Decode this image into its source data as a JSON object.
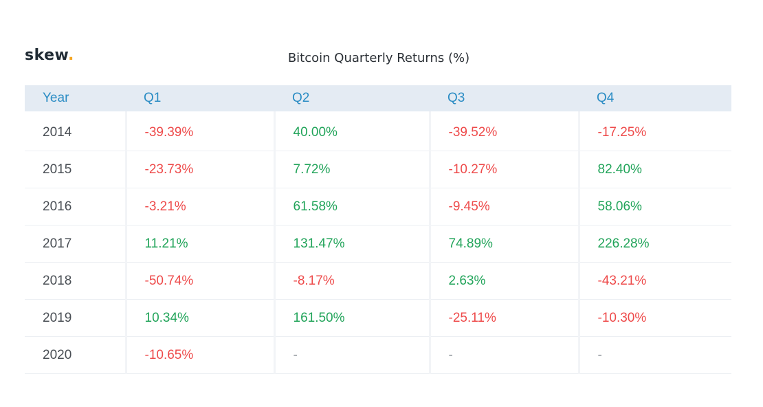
{
  "brand": {
    "name": "skew",
    "dot": ".",
    "accent_color": "#f5a623"
  },
  "title": "Bitcoin Quarterly Returns (%)",
  "colors": {
    "header_bg": "#e4ebf3",
    "header_text": "#2a8cc4",
    "positive": "#22a45a",
    "negative": "#ee4b4b"
  },
  "chart_data": {
    "type": "table",
    "title": "Bitcoin Quarterly Returns (%)",
    "columns": [
      "Year",
      "Q1",
      "Q2",
      "Q3",
      "Q4"
    ],
    "rows": [
      {
        "year": "2014",
        "cells": [
          "-39.39%",
          "40.00%",
          "-39.52%",
          "-17.25%"
        ]
      },
      {
        "year": "2015",
        "cells": [
          "-23.73%",
          "7.72%",
          "-10.27%",
          "82.40%"
        ]
      },
      {
        "year": "2016",
        "cells": [
          "-3.21%",
          "61.58%",
          "-9.45%",
          "58.06%"
        ]
      },
      {
        "year": "2017",
        "cells": [
          "11.21%",
          "131.47%",
          "74.89%",
          "226.28%"
        ]
      },
      {
        "year": "2018",
        "cells": [
          "-50.74%",
          "-8.17%",
          "2.63%",
          "-43.21%"
        ]
      },
      {
        "year": "2019",
        "cells": [
          "10.34%",
          "161.50%",
          "-25.11%",
          "-10.30%"
        ]
      },
      {
        "year": "2020",
        "cells": [
          "-10.65%",
          "-",
          "-",
          "-"
        ]
      }
    ]
  }
}
